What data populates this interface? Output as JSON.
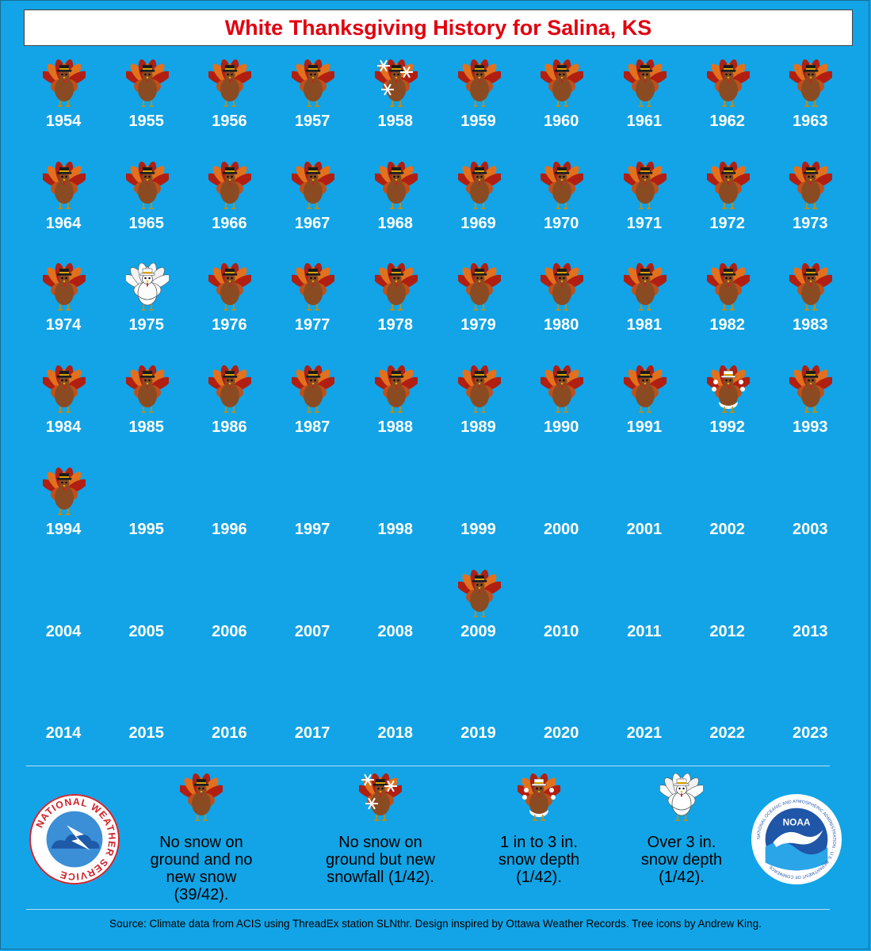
{
  "title": "White Thanksgiving History for Salina, KS",
  "colors": {
    "background": "#12a4e6",
    "title_text": "#e1000f",
    "turkey_body": "#8a4b22",
    "turkey_feathers_orange": "#e2711d",
    "turkey_feathers_red": "#b11f12",
    "snow_white": "#ffffff"
  },
  "years": [
    {
      "year": "1954",
      "icon": "turkey-no-snow"
    },
    {
      "year": "1955",
      "icon": "turkey-no-snow"
    },
    {
      "year": "1956",
      "icon": "turkey-no-snow"
    },
    {
      "year": "1957",
      "icon": "turkey-no-snow"
    },
    {
      "year": "1958",
      "icon": "turkey-new-snowfall"
    },
    {
      "year": "1959",
      "icon": "turkey-no-snow"
    },
    {
      "year": "1960",
      "icon": "turkey-no-snow"
    },
    {
      "year": "1961",
      "icon": "turkey-no-snow"
    },
    {
      "year": "1962",
      "icon": "turkey-no-snow"
    },
    {
      "year": "1963",
      "icon": "turkey-no-snow"
    },
    {
      "year": "1964",
      "icon": "turkey-no-snow"
    },
    {
      "year": "1965",
      "icon": "turkey-no-snow"
    },
    {
      "year": "1966",
      "icon": "turkey-no-snow"
    },
    {
      "year": "1967",
      "icon": "turkey-no-snow"
    },
    {
      "year": "1968",
      "icon": "turkey-no-snow"
    },
    {
      "year": "1969",
      "icon": "turkey-no-snow"
    },
    {
      "year": "1970",
      "icon": "turkey-no-snow"
    },
    {
      "year": "1971",
      "icon": "turkey-no-snow"
    },
    {
      "year": "1972",
      "icon": "turkey-no-snow"
    },
    {
      "year": "1973",
      "icon": "turkey-no-snow"
    },
    {
      "year": "1974",
      "icon": "turkey-no-snow"
    },
    {
      "year": "1975",
      "icon": "turkey-deep-snow"
    },
    {
      "year": "1976",
      "icon": "turkey-no-snow"
    },
    {
      "year": "1977",
      "icon": "turkey-no-snow"
    },
    {
      "year": "1978",
      "icon": "turkey-no-snow"
    },
    {
      "year": "1979",
      "icon": "turkey-no-snow"
    },
    {
      "year": "1980",
      "icon": "turkey-no-snow"
    },
    {
      "year": "1981",
      "icon": "turkey-no-snow"
    },
    {
      "year": "1982",
      "icon": "turkey-no-snow"
    },
    {
      "year": "1983",
      "icon": "turkey-no-snow"
    },
    {
      "year": "1984",
      "icon": "turkey-no-snow"
    },
    {
      "year": "1985",
      "icon": "turkey-no-snow"
    },
    {
      "year": "1986",
      "icon": "turkey-no-snow"
    },
    {
      "year": "1987",
      "icon": "turkey-no-snow"
    },
    {
      "year": "1988",
      "icon": "turkey-no-snow"
    },
    {
      "year": "1989",
      "icon": "turkey-no-snow"
    },
    {
      "year": "1990",
      "icon": "turkey-no-snow"
    },
    {
      "year": "1991",
      "icon": "turkey-no-snow"
    },
    {
      "year": "1992",
      "icon": "turkey-light-snow"
    },
    {
      "year": "1993",
      "icon": "turkey-no-snow"
    },
    {
      "year": "1994",
      "icon": "turkey-no-snow"
    },
    {
      "year": "1995",
      "icon": ""
    },
    {
      "year": "1996",
      "icon": ""
    },
    {
      "year": "1997",
      "icon": ""
    },
    {
      "year": "1998",
      "icon": ""
    },
    {
      "year": "1999",
      "icon": ""
    },
    {
      "year": "2000",
      "icon": ""
    },
    {
      "year": "2001",
      "icon": ""
    },
    {
      "year": "2002",
      "icon": ""
    },
    {
      "year": "2003",
      "icon": ""
    },
    {
      "year": "2004",
      "icon": ""
    },
    {
      "year": "2005",
      "icon": ""
    },
    {
      "year": "2006",
      "icon": ""
    },
    {
      "year": "2007",
      "icon": ""
    },
    {
      "year": "2008",
      "icon": ""
    },
    {
      "year": "2009",
      "icon": "turkey-no-snow"
    },
    {
      "year": "2010",
      "icon": ""
    },
    {
      "year": "2011",
      "icon": ""
    },
    {
      "year": "2012",
      "icon": ""
    },
    {
      "year": "2013",
      "icon": ""
    },
    {
      "year": "2014",
      "icon": ""
    },
    {
      "year": "2015",
      "icon": ""
    },
    {
      "year": "2016",
      "icon": ""
    },
    {
      "year": "2017",
      "icon": ""
    },
    {
      "year": "2018",
      "icon": ""
    },
    {
      "year": "2019",
      "icon": ""
    },
    {
      "year": "2020",
      "icon": ""
    },
    {
      "year": "2021",
      "icon": ""
    },
    {
      "year": "2022",
      "icon": ""
    },
    {
      "year": "2023",
      "icon": ""
    }
  ],
  "legend": [
    {
      "icon": "turkey-no-snow",
      "text": "No snow on ground and no new snow (39/42)."
    },
    {
      "icon": "turkey-new-snowfall",
      "text": "No snow on ground but new snowfall (1/42)."
    },
    {
      "icon": "turkey-light-snow",
      "text": "1 in to 3 in. snow depth (1/42)."
    },
    {
      "icon": "turkey-deep-snow",
      "text": "Over 3 in. snow depth (1/42)."
    }
  ],
  "logos": {
    "nws": {
      "icon": "nws-logo-icon",
      "lettering": "NATIONAL WEATHER SERVICE"
    },
    "noaa": {
      "icon": "noaa-logo-icon",
      "lettering": "NOAA · NATIONAL OCEANIC AND ATMOSPHERIC ADMINISTRATION · U.S. DEPARTMENT OF COMMERCE"
    }
  },
  "source": "Source: Climate data from ACIS using ThreadEx station SLNthr. Design inspired by Ottawa Weather Records. Tree icons by Andrew King."
}
